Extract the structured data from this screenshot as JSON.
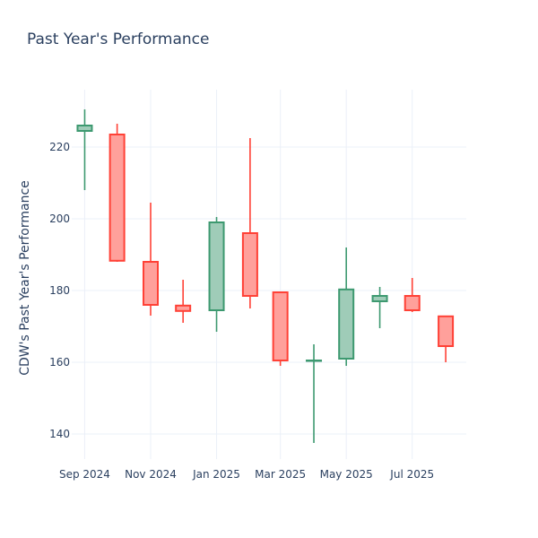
{
  "chart_data": {
    "type": "candlestick",
    "title": "Past Year's Performance",
    "ylabel": "CDW's Past Year's Performance",
    "xlabel": "",
    "ylim": [
      133,
      236
    ],
    "yticks": [
      140,
      160,
      180,
      200,
      220
    ],
    "xticks": [
      {
        "date": "2024-09-01",
        "label": "Sep 2024"
      },
      {
        "date": "2024-11-01",
        "label": "Nov 2024"
      },
      {
        "date": "2025-01-01",
        "label": "Jan 2025"
      },
      {
        "date": "2025-03-01",
        "label": "Mar 2025"
      },
      {
        "date": "2025-05-01",
        "label": "May 2025"
      },
      {
        "date": "2025-07-01",
        "label": "Jul 2025"
      }
    ],
    "xrange": [
      "2024-08-20",
      "2025-08-20"
    ],
    "grid": true,
    "colors": {
      "increasing": "#3d9970",
      "decreasing": "#ff4136",
      "increasing_fill": "#9fccb8",
      "decreasing_fill": "#ffa09b"
    },
    "candles": [
      {
        "date": "2024-09-01",
        "open": 224.5,
        "high": 230.5,
        "low": 208.0,
        "close": 226.0
      },
      {
        "date": "2024-10-01",
        "open": 223.5,
        "high": 226.5,
        "low": 188.0,
        "close": 188.3
      },
      {
        "date": "2024-11-01",
        "open": 188.0,
        "high": 204.5,
        "low": 173.0,
        "close": 176.0
      },
      {
        "date": "2024-12-01",
        "open": 175.8,
        "high": 183.0,
        "low": 171.0,
        "close": 174.3
      },
      {
        "date": "2025-01-01",
        "open": 174.5,
        "high": 200.5,
        "low": 168.5,
        "close": 199.0
      },
      {
        "date": "2025-02-01",
        "open": 196.0,
        "high": 222.5,
        "low": 175.0,
        "close": 178.5
      },
      {
        "date": "2025-03-01",
        "open": 179.5,
        "high": 179.5,
        "low": 159.0,
        "close": 160.5
      },
      {
        "date": "2025-04-01",
        "open": 160.5,
        "high": 165.0,
        "low": 137.5,
        "close": 160.5
      },
      {
        "date": "2025-05-01",
        "open": 161.0,
        "high": 192.0,
        "low": 159.0,
        "close": 180.3
      },
      {
        "date": "2025-06-01",
        "open": 177.0,
        "high": 181.0,
        "low": 169.5,
        "close": 178.5
      },
      {
        "date": "2025-07-01",
        "open": 178.5,
        "high": 183.5,
        "low": 174.0,
        "close": 174.5
      },
      {
        "date": "2025-08-01",
        "open": 172.8,
        "high": 173.0,
        "low": 160.0,
        "close": 164.5
      }
    ]
  }
}
